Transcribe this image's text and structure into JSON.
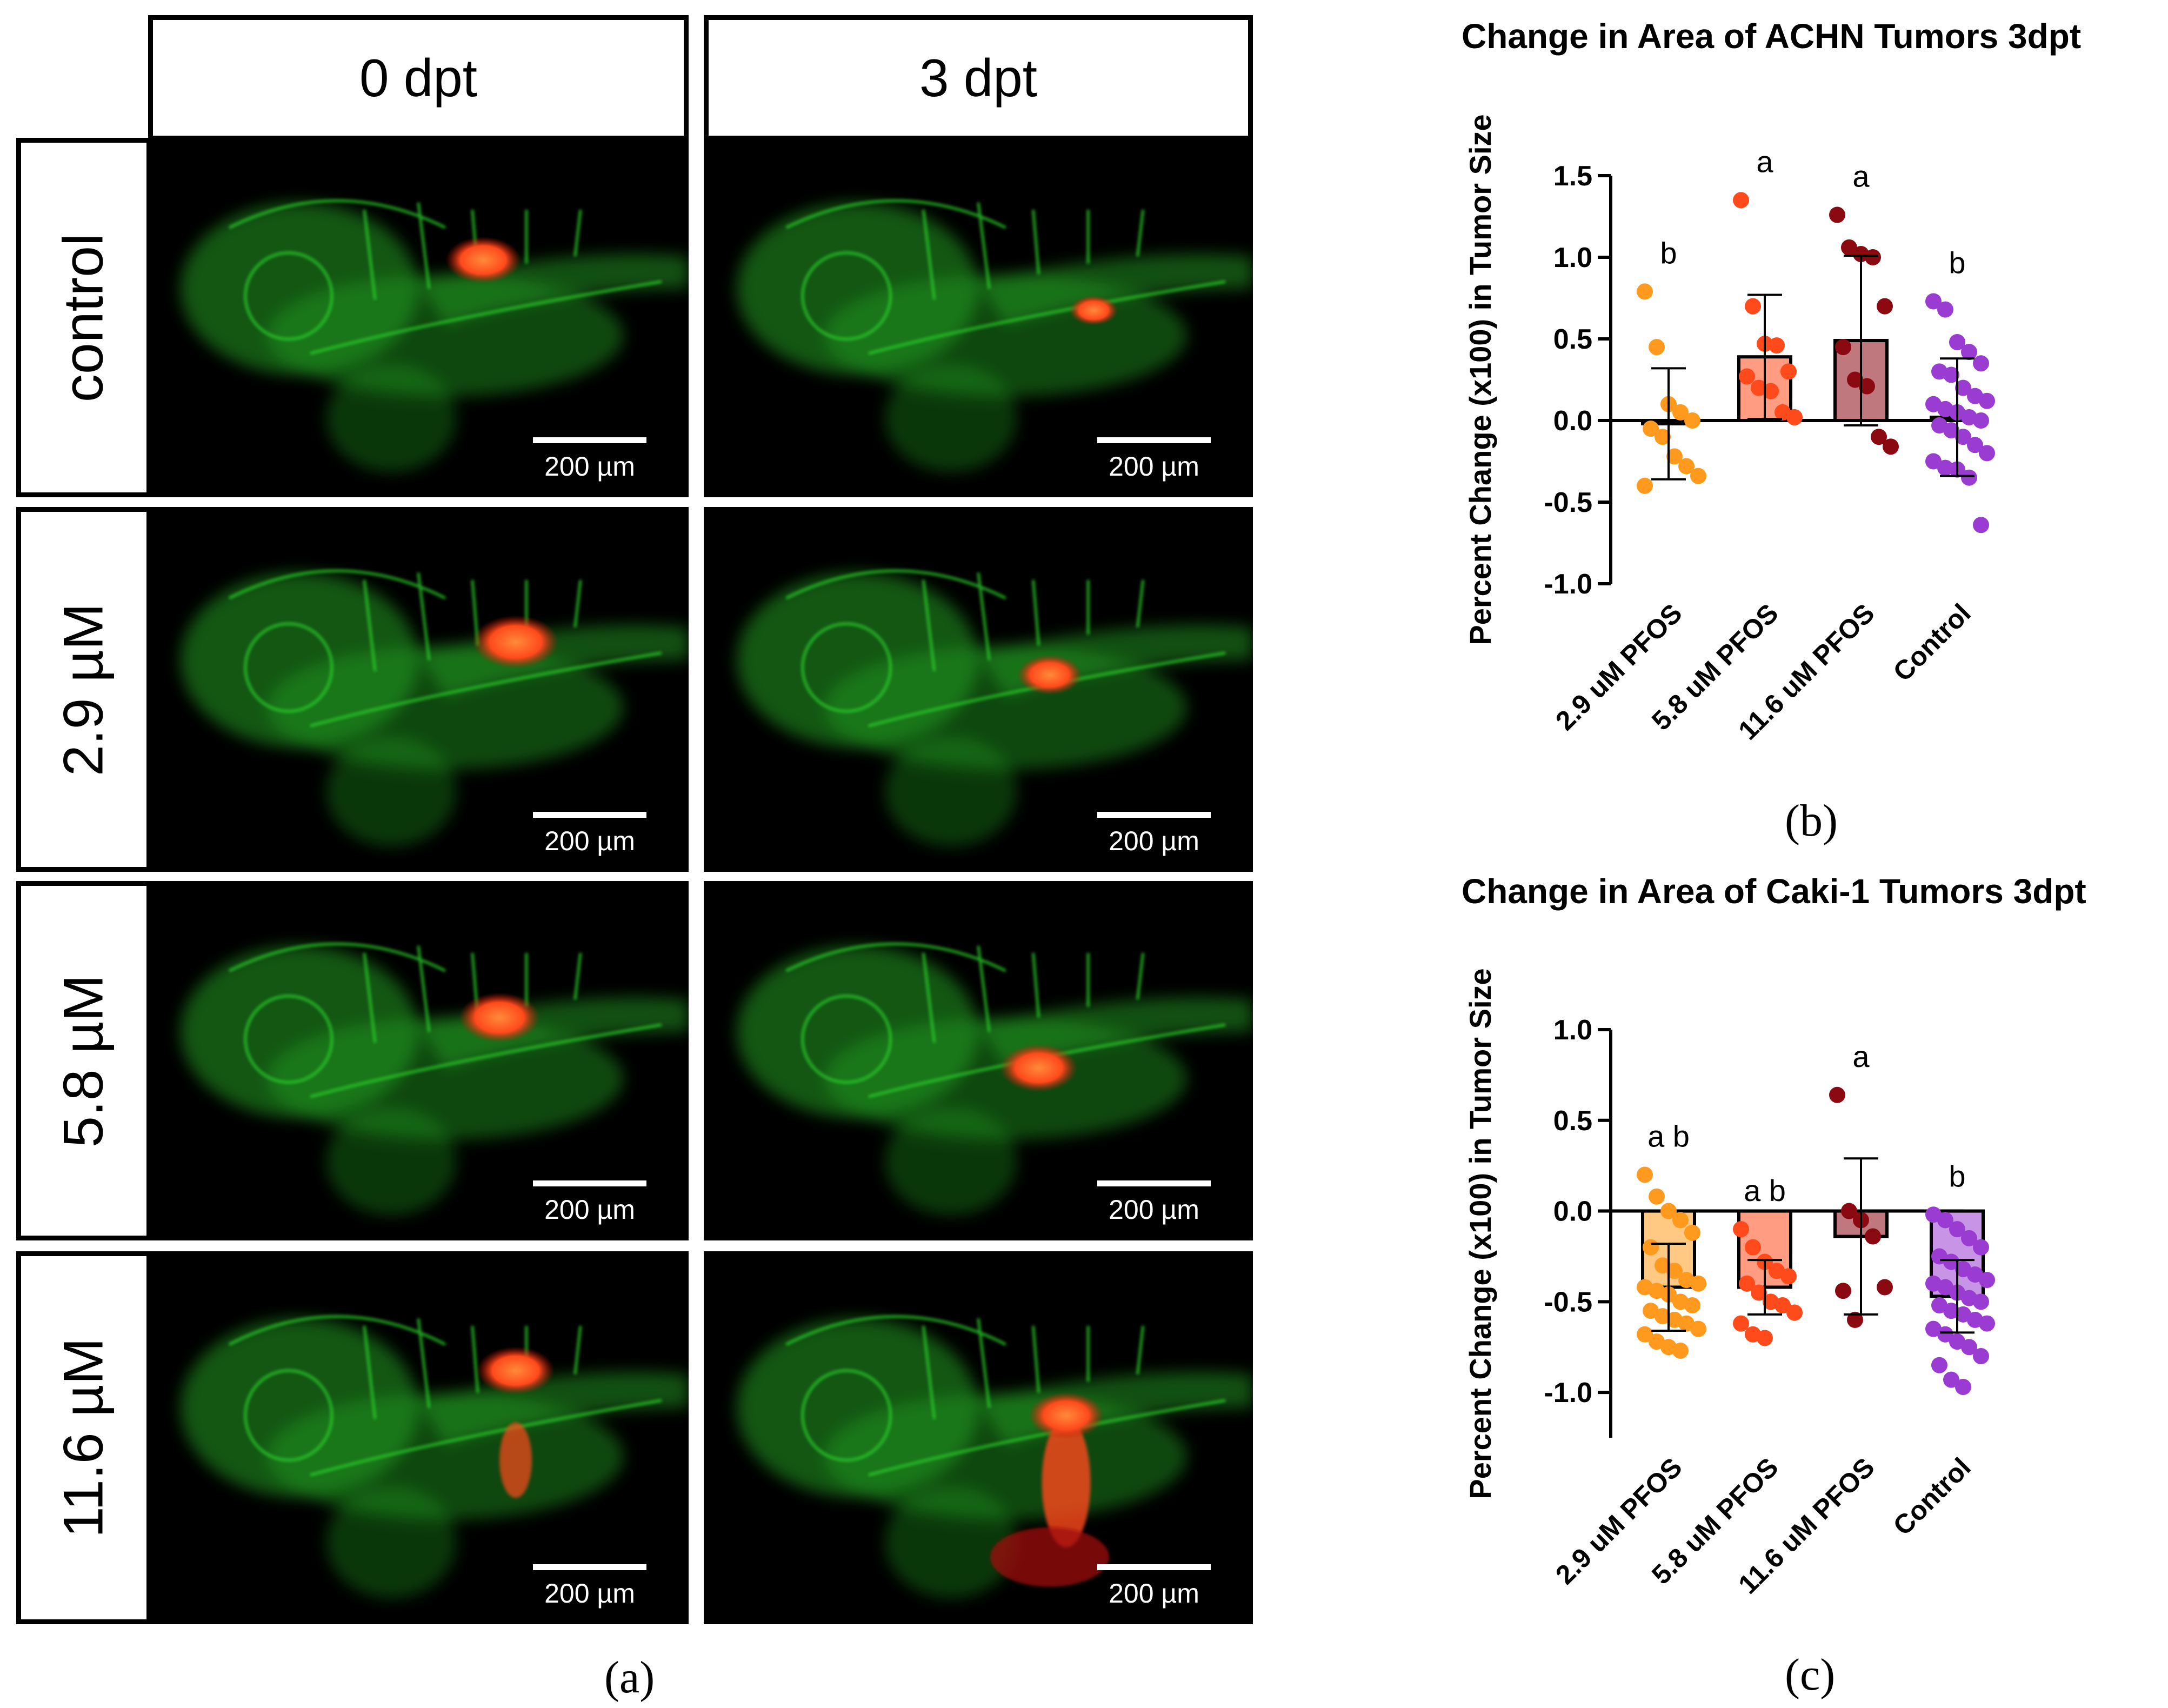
{
  "panel_a": {
    "columns": [
      "0 dpt",
      "3 dpt"
    ],
    "rows": [
      "control",
      "2.9 µM",
      "5.8 µM",
      "11.6 µM"
    ],
    "scale_bar": "200 µm",
    "caption": "(a)"
  },
  "colors": {
    "vasculature": "#2fd42f",
    "tumor": "#ff4a1c",
    "group_2_9": "#ff9a1e",
    "group_5_8": "#ff4a1c",
    "group_11_6": "#8b0a12",
    "group_control": "#9a3cd2"
  },
  "chart_data": [
    {
      "type": "bar",
      "title": "Change in Area of ACHN Tumors 3dpt",
      "ylabel": "Percent Change (x100) in Tumor Size",
      "xlabel": "",
      "ylim": [
        -1.0,
        1.5
      ],
      "yticks": [
        -1.0,
        -0.5,
        0.0,
        0.5,
        1.0,
        1.5
      ],
      "ytick_labels": [
        "-1.0",
        "-0.5",
        "0.0",
        "0.5",
        "1.0",
        "1.5"
      ],
      "categories": [
        "2.9 uM PFOS",
        "5.8 uM PFOS",
        "11.6 uM PFOS",
        "Control"
      ],
      "values": [
        -0.02,
        0.39,
        0.49,
        0.02
      ],
      "error": [
        0.34,
        0.38,
        0.52,
        0.36
      ],
      "letters": [
        "b",
        "a",
        "a",
        "b"
      ],
      "points": [
        [
          0.79,
          0.45,
          0.1,
          0.05,
          0.0,
          -0.05,
          -0.1,
          -0.22,
          -0.28,
          -0.34,
          -0.4
        ],
        [
          1.35,
          0.7,
          0.47,
          0.46,
          0.3,
          0.27,
          0.2,
          0.18,
          0.05,
          0.02
        ],
        [
          1.26,
          1.06,
          1.02,
          1.0,
          0.7,
          0.45,
          0.25,
          0.21,
          -0.1,
          -0.16
        ],
        [
          0.73,
          0.68,
          0.48,
          0.42,
          0.35,
          0.3,
          0.28,
          0.2,
          0.15,
          0.12,
          0.1,
          0.07,
          0.05,
          0.02,
          0.0,
          -0.03,
          -0.06,
          -0.1,
          -0.15,
          -0.2,
          -0.25,
          -0.29,
          -0.3,
          -0.35,
          -0.64
        ]
      ]
    },
    {
      "type": "bar",
      "title": "Change in Area of Caki-1 Tumors 3dpt",
      "ylabel": "Percent Change (x100) in Tumor Size",
      "xlabel": "",
      "ylim": [
        -1.25,
        1.0
      ],
      "yticks": [
        -1.0,
        -0.5,
        0.0,
        0.5,
        1.0
      ],
      "ytick_labels": [
        "-1.0",
        "-0.5",
        "0.0",
        "0.5",
        "1.0"
      ],
      "categories": [
        "2.9 uM PFOS",
        "5.8 uM PFOS",
        "11.6 uM PFOS",
        "Control"
      ],
      "values": [
        -0.42,
        -0.42,
        -0.14,
        -0.47
      ],
      "error": [
        0.24,
        0.15,
        0.43,
        0.2
      ],
      "letters": [
        "a b",
        "a b",
        "a",
        "b"
      ],
      "points": [
        [
          0.2,
          0.08,
          0.0,
          -0.05,
          -0.12,
          -0.2,
          -0.3,
          -0.33,
          -0.38,
          -0.4,
          -0.42,
          -0.44,
          -0.46,
          -0.5,
          -0.52,
          -0.55,
          -0.58,
          -0.6,
          -0.62,
          -0.65,
          -0.68,
          -0.72,
          -0.75,
          -0.77
        ],
        [
          -0.1,
          -0.2,
          -0.28,
          -0.33,
          -0.36,
          -0.4,
          -0.45,
          -0.5,
          -0.52,
          -0.56,
          -0.62,
          -0.68,
          -0.7
        ],
        [
          0.64,
          0.0,
          -0.05,
          -0.14,
          -0.42,
          -0.44,
          -0.6
        ],
        [
          -0.02,
          -0.05,
          -0.1,
          -0.15,
          -0.2,
          -0.25,
          -0.28,
          -0.32,
          -0.35,
          -0.38,
          -0.4,
          -0.42,
          -0.45,
          -0.48,
          -0.5,
          -0.52,
          -0.55,
          -0.57,
          -0.6,
          -0.62,
          -0.65,
          -0.68,
          -0.72,
          -0.75,
          -0.8,
          -0.85,
          -0.93,
          -0.97
        ]
      ]
    }
  ],
  "captions": {
    "b": "(b)",
    "c": "(c)"
  }
}
